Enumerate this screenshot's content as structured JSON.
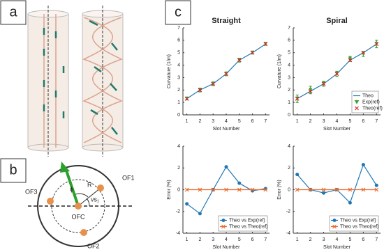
{
  "panel_labels": [
    "a",
    "b",
    "c"
  ],
  "diagram": {
    "labels": {
      "of1": "OF1",
      "of2": "OF2",
      "of3": "OF3",
      "ofc": "OFC",
      "phi": "ϕ",
      "r": "R",
      "vs": "vs₁"
    }
  },
  "chart_data": [
    {
      "type": "line",
      "title": "Straight",
      "xlabel": "Slot Number",
      "ylabel": "Curvature (1/m)",
      "x": [
        1,
        2,
        3,
        4,
        5,
        6,
        7
      ],
      "xlim": [
        0.7,
        7.3
      ],
      "xticks": [
        1,
        2,
        3,
        4,
        5,
        6,
        7
      ],
      "ylim": [
        0,
        7
      ],
      "yticks": [
        0,
        1,
        2,
        3,
        4,
        5,
        6,
        7
      ],
      "series": [
        {
          "name": "Theo",
          "color": "#1f77b4",
          "style": "line",
          "values": [
            1.3,
            2.0,
            2.5,
            3.3,
            4.4,
            5.0,
            5.7
          ]
        },
        {
          "name": "Exp(ref)",
          "color": "#3aa335",
          "style": "errorbar",
          "values": [
            1.3,
            2.0,
            2.5,
            3.3,
            4.4,
            5.0,
            5.7
          ],
          "errors": [
            0.1,
            0.15,
            0.15,
            0.15,
            0.15,
            0.1,
            0.1
          ]
        },
        {
          "name": "Theo(ref)",
          "color": "#d62728",
          "style": "cross",
          "values": [
            1.3,
            2.0,
            2.5,
            3.3,
            4.4,
            5.0,
            5.7
          ]
        }
      ]
    },
    {
      "type": "line",
      "title": "Spiral",
      "xlabel": "Slot Number",
      "ylabel": "Curvature (1/m)",
      "x": [
        1,
        2,
        3,
        4,
        5,
        6,
        7
      ],
      "xlim": [
        0.7,
        7.3
      ],
      "xticks": [
        1,
        2,
        3,
        4,
        5,
        6,
        7
      ],
      "ylim": [
        0,
        7
      ],
      "yticks": [
        0,
        1,
        2,
        3,
        4,
        5,
        6,
        7
      ],
      "legend": "lower right",
      "series": [
        {
          "name": "Theo",
          "color": "#1f77b4",
          "style": "line",
          "values": [
            1.3,
            1.9,
            2.5,
            3.3,
            4.4,
            5.0,
            5.7
          ]
        },
        {
          "name": "Exp(ref)",
          "color": "#3aa335",
          "style": "errorbar",
          "values": [
            1.3,
            2.0,
            2.5,
            3.3,
            4.5,
            4.9,
            5.7
          ],
          "errors": [
            0.3,
            0.3,
            0.2,
            0.2,
            0.2,
            0.2,
            0.3
          ]
        },
        {
          "name": "Theo(ref)",
          "color": "#d62728",
          "style": "cross",
          "values": [
            1.3,
            1.9,
            2.5,
            3.3,
            4.4,
            5.0,
            5.7
          ]
        }
      ]
    },
    {
      "type": "line",
      "xlabel": "Slot Number",
      "ylabel": "Error (%)",
      "x": [
        1,
        2,
        3,
        4,
        5,
        6,
        7
      ],
      "xlim": [
        0.7,
        7.3
      ],
      "xticks": [
        1,
        2,
        3,
        4,
        5,
        6,
        7
      ],
      "ylim": [
        -4,
        4
      ],
      "yticks": [
        -4,
        -2,
        0,
        2,
        4
      ],
      "legend": "lower right",
      "series": [
        {
          "name": "Theo vs Exp(ref)",
          "color": "#1f77b4",
          "style": "line-circle",
          "values": [
            -1.3,
            -2.2,
            0,
            2.1,
            0.6,
            -0.1,
            0.1
          ]
        },
        {
          "name": "Theo vs Theo(ref)",
          "color": "#e8692a",
          "style": "line-cross",
          "values": [
            0,
            0,
            0,
            0,
            0,
            0,
            0
          ]
        }
      ]
    },
    {
      "type": "line",
      "xlabel": "Slot Number",
      "ylabel": "Error (%)",
      "x": [
        1,
        2,
        3,
        4,
        5,
        6,
        7
      ],
      "xlim": [
        0.7,
        7.3
      ],
      "xticks": [
        1,
        2,
        3,
        4,
        5,
        6,
        7
      ],
      "ylim": [
        -4,
        4
      ],
      "yticks": [
        -4,
        -2,
        0,
        2,
        4
      ],
      "legend": "lower right",
      "series": [
        {
          "name": "Theo vs Exp(ref)",
          "color": "#1f77b4",
          "style": "line-circle",
          "values": [
            1.4,
            0,
            -0.3,
            0,
            -1.2,
            2.3,
            0.4
          ]
        },
        {
          "name": "Theo vs Theo(ref)",
          "color": "#e8692a",
          "style": "line-cross",
          "values": [
            0,
            0,
            0,
            0,
            0,
            0,
            0
          ]
        }
      ]
    }
  ]
}
